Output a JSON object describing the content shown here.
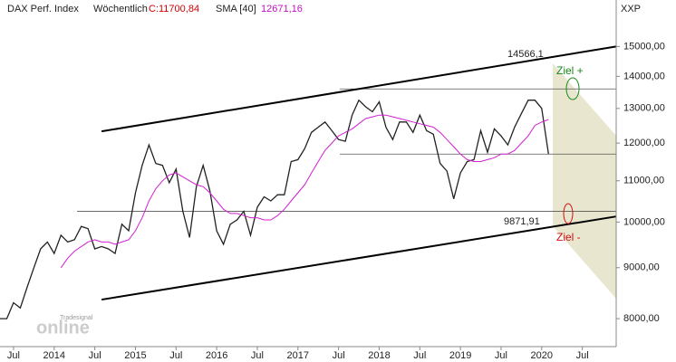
{
  "chart_data": {
    "type": "line",
    "title": "DAX Perf. Index",
    "interval": "Wöchentlich",
    "last_label": "C:11700,84",
    "sma_label": "SMA [40]",
    "sma_last_label": "12671,16",
    "axis_unit": "XXP",
    "watermark": [
      "Tradesignal",
      "online"
    ],
    "annotations": [
      "14566,1",
      "9871,91",
      "Ziel +",
      "Ziel -"
    ],
    "log_scale": true,
    "x": [
      "2013-05",
      "2013-06",
      "2013-07",
      "2013-08",
      "2013-09",
      "2013-10",
      "2013-11",
      "2013-12",
      "2014-01",
      "2014-02",
      "2014-03",
      "2014-04",
      "2014-05",
      "2014-06",
      "2014-07",
      "2014-08",
      "2014-09",
      "2014-10",
      "2014-11",
      "2014-12",
      "2015-01",
      "2015-02",
      "2015-03",
      "2015-04",
      "2015-05",
      "2015-06",
      "2015-07",
      "2015-08",
      "2015-09",
      "2015-10",
      "2015-11",
      "2015-12",
      "2016-01",
      "2016-02",
      "2016-03",
      "2016-04",
      "2016-05",
      "2016-06",
      "2016-07",
      "2016-08",
      "2016-09",
      "2016-10",
      "2016-11",
      "2016-12",
      "2017-01",
      "2017-02",
      "2017-03",
      "2017-04",
      "2017-05",
      "2017-06",
      "2017-07",
      "2017-08",
      "2017-09",
      "2017-10",
      "2017-11",
      "2017-12",
      "2018-01",
      "2018-02",
      "2018-03",
      "2018-04",
      "2018-05",
      "2018-06",
      "2018-07",
      "2018-08",
      "2018-09",
      "2018-10",
      "2018-11",
      "2018-12",
      "2019-01",
      "2019-02",
      "2019-03",
      "2019-04",
      "2019-05",
      "2019-06",
      "2019-07",
      "2019-08",
      "2019-09",
      "2019-10",
      "2019-11",
      "2019-12",
      "2020-01",
      "2020-02"
    ],
    "series": [
      {
        "name": "DAX Perf. Index",
        "color": "#222222",
        "values": [
          8000,
          8000,
          8300,
          8200,
          8600,
          9000,
          9400,
          9550,
          9300,
          9700,
          9550,
          9600,
          9900,
          9850,
          9400,
          9450,
          9400,
          9300,
          9950,
          9800,
          10700,
          11400,
          11950,
          11450,
          11400,
          10950,
          11300,
          10250,
          9650,
          10850,
          11400,
          10750,
          9800,
          9500,
          9950,
          10050,
          10250,
          9700,
          10350,
          10600,
          10500,
          10650,
          10650,
          11500,
          11550,
          11850,
          12300,
          12450,
          12600,
          12350,
          12100,
          12050,
          12800,
          13250,
          13050,
          12900,
          13200,
          12450,
          12100,
          12600,
          12600,
          12300,
          12800,
          12350,
          12250,
          11450,
          11250,
          10550,
          11200,
          11500,
          11550,
          12350,
          11750,
          12400,
          12200,
          11950,
          12450,
          12850,
          13250,
          13250,
          13000,
          11700.84
        ]
      },
      {
        "name": "SMA [40]",
        "color": "#d020d0",
        "values": [
          null,
          null,
          null,
          null,
          null,
          null,
          null,
          null,
          null,
          9000,
          9200,
          9350,
          9450,
          9550,
          9600,
          9550,
          9550,
          9500,
          9550,
          9600,
          9800,
          10100,
          10500,
          10800,
          11000,
          11150,
          11200,
          11100,
          11000,
          10900,
          10850,
          10700,
          10500,
          10300,
          10200,
          10200,
          10150,
          10100,
          10100,
          10050,
          10050,
          10150,
          10300,
          10500,
          10700,
          10900,
          11200,
          11500,
          11800,
          12000,
          12200,
          12300,
          12400,
          12550,
          12700,
          12750,
          12800,
          12800,
          12750,
          12700,
          12650,
          12600,
          12550,
          12500,
          12450,
          12300,
          12100,
          11900,
          11700,
          11550,
          11500,
          11500,
          11550,
          11600,
          11700,
          11700,
          11800,
          12000,
          12200,
          12500,
          12600,
          12671.16
        ]
      }
    ],
    "channel": [
      {
        "x": [
          "2014-08",
          "2020-12"
        ],
        "values": [
          12330,
          15000
        ]
      },
      {
        "x": [
          "2014-08",
          "2020-12"
        ],
        "values": [
          8360,
          10130
        ]
      }
    ],
    "levels": [
      13600,
      11700,
      10250
    ],
    "xlim": [
      "2013-05",
      "2020-12"
    ],
    "xticks": [
      {
        "value": "2013-07",
        "label": "Jul"
      },
      {
        "value": "2014-01",
        "label": "2014"
      },
      {
        "value": "2014-07",
        "label": "Jul"
      },
      {
        "value": "2015-01",
        "label": "2015"
      },
      {
        "value": "2015-07",
        "label": "Jul"
      },
      {
        "value": "2016-01",
        "label": "2016"
      },
      {
        "value": "2016-07",
        "label": "Jul"
      },
      {
        "value": "2017-01",
        "label": "2017"
      },
      {
        "value": "2017-07",
        "label": "Jul"
      },
      {
        "value": "2018-01",
        "label": "2018"
      },
      {
        "value": "2018-07",
        "label": "Jul"
      },
      {
        "value": "2019-01",
        "label": "2019"
      },
      {
        "value": "2019-07",
        "label": "Jul"
      },
      {
        "value": "2020-01",
        "label": "2020"
      },
      {
        "value": "2020-07",
        "label": "Jul"
      }
    ],
    "ylim": [
      7500,
      16700
    ],
    "yticks": [
      {
        "value": 8000,
        "label": "8000,00"
      },
      {
        "value": 9000,
        "label": "9000,00"
      },
      {
        "value": 10000,
        "label": "10000,00"
      },
      {
        "value": 11000,
        "label": "11000,00"
      },
      {
        "value": 12000,
        "label": "12000,00"
      },
      {
        "value": 13000,
        "label": "13000,00"
      },
      {
        "value": 14000,
        "label": "14000,00"
      },
      {
        "value": 15000,
        "label": "15000,00"
      }
    ]
  }
}
